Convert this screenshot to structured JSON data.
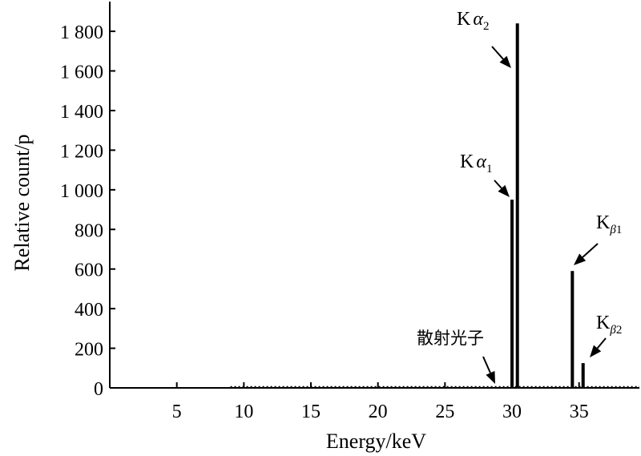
{
  "chart_data": {
    "type": "bar",
    "xlabel": "Energy/keV",
    "ylabel": "Relative count/p",
    "xlim": [
      0,
      39.5
    ],
    "ylim": [
      0,
      1950
    ],
    "x_ticks": [
      5,
      10,
      15,
      20,
      25,
      30,
      35
    ],
    "y_ticks": [
      0,
      200,
      400,
      600,
      800,
      1000,
      1200,
      1400,
      1600,
      1800
    ],
    "y_tick_labels": [
      "0",
      "200",
      "400",
      "600",
      "800",
      "1 000",
      "1 200",
      "1 400",
      "1 600",
      "1 800"
    ],
    "grid": false,
    "legend": "none",
    "peaks": [
      {
        "x": 30.0,
        "value": 950
      },
      {
        "x": 30.4,
        "value": 1840
      },
      {
        "x": 34.5,
        "value": 590
      },
      {
        "x": 35.3,
        "value": 125
      }
    ],
    "baseline_start": 9,
    "annotations": [
      {
        "id": "ka2",
        "main": "K",
        "greek": "α",
        "sub": "2"
      },
      {
        "id": "ka1",
        "main": "K",
        "greek": "α",
        "sub": "1"
      },
      {
        "id": "kb1",
        "main": "K",
        "greek": "",
        "sub": "β1"
      },
      {
        "id": "kb2",
        "main": "K",
        "greek": "",
        "sub": "β2"
      },
      {
        "id": "scatter",
        "main": "散射光子",
        "greek": "",
        "sub": ""
      }
    ],
    "colors": {
      "line": "#000000",
      "background": "#ffffff"
    }
  }
}
